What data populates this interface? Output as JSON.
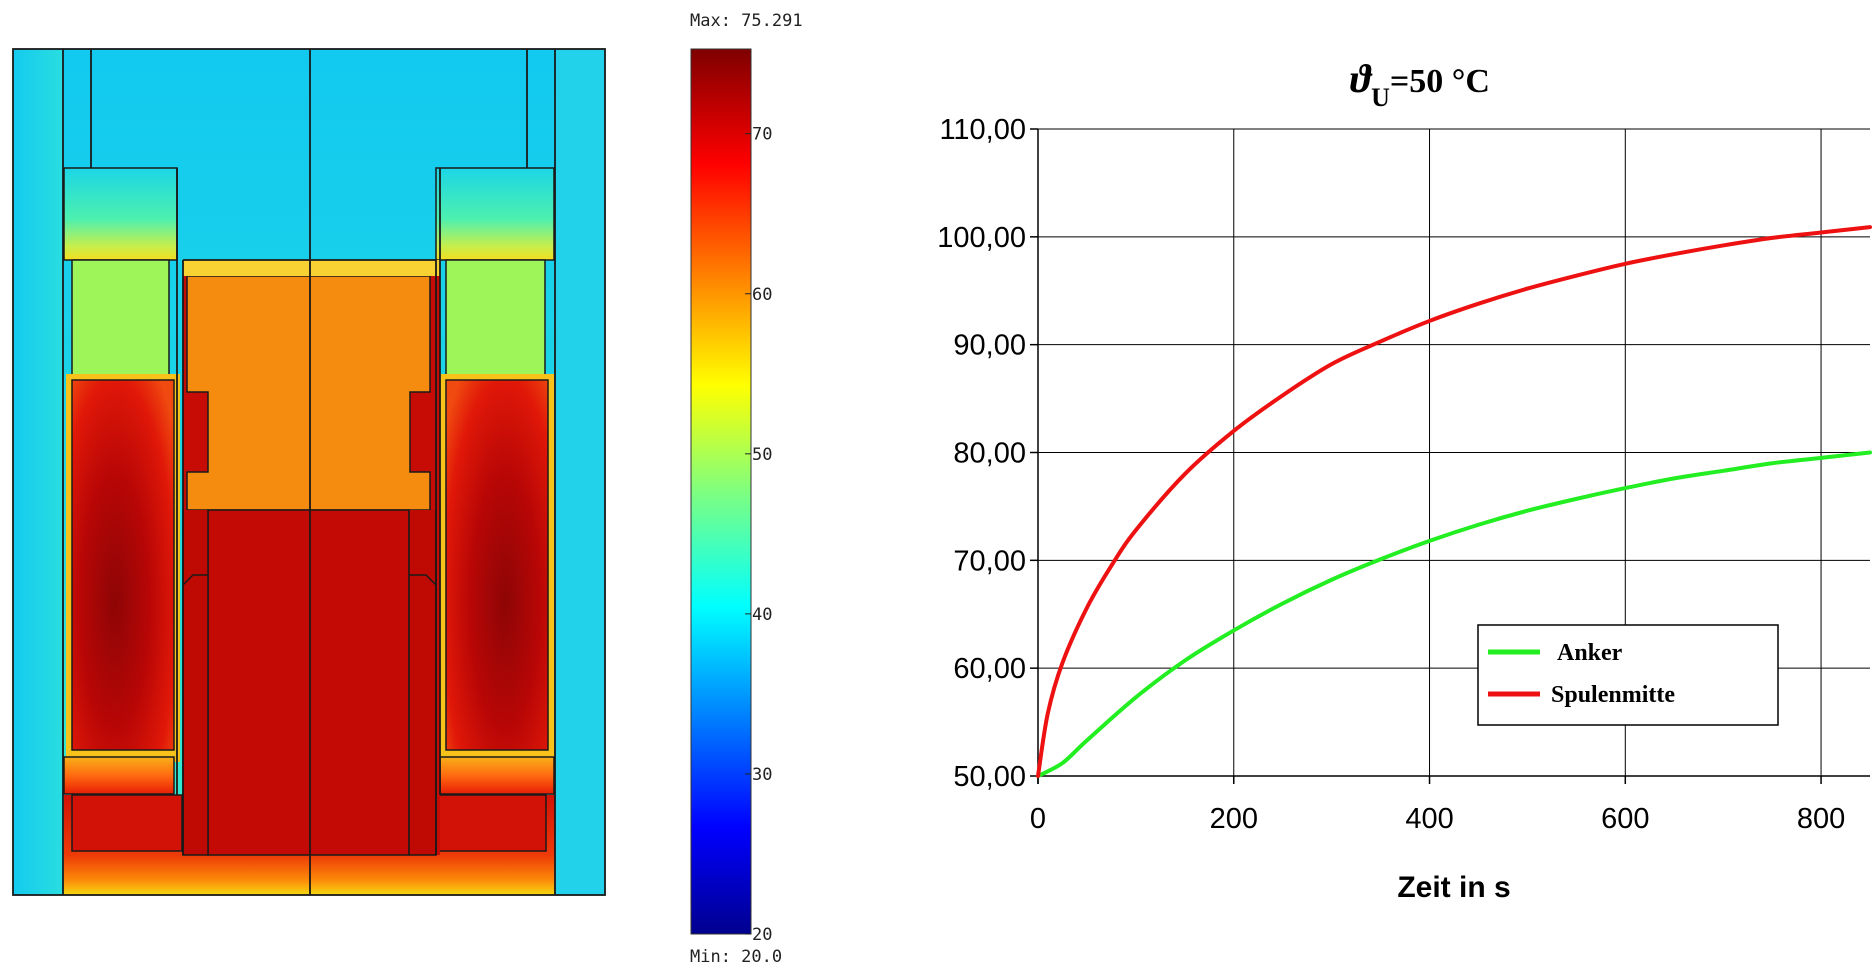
{
  "fem": {
    "scale_max_label": "Max: 75.291",
    "scale_min_label": "Min: 20.0",
    "colorbar_ticks": [
      {
        "value": 70,
        "label": "70"
      },
      {
        "value": 60,
        "label": "60"
      },
      {
        "value": 50,
        "label": "50"
      },
      {
        "value": 40,
        "label": "40"
      },
      {
        "value": 30,
        "label": "30"
      },
      {
        "value": 20,
        "label": "20"
      }
    ],
    "scale_range": [
      20.0,
      75.291
    ],
    "colormap": "jet"
  },
  "chart_data": {
    "type": "line",
    "title": "ϑU=50 °C",
    "title_symbol": "ϑ",
    "title_subscript": "U",
    "title_rest": "=50 °C",
    "xlabel": "Zeit in s",
    "ylabel": "",
    "xlim": [
      0,
      850
    ],
    "ylim": [
      50,
      110
    ],
    "xticks": [
      {
        "value": 0,
        "label": "0"
      },
      {
        "value": 200,
        "label": "200"
      },
      {
        "value": 400,
        "label": "400"
      },
      {
        "value": 600,
        "label": "600"
      },
      {
        "value": 800,
        "label": "800"
      }
    ],
    "yticks": [
      {
        "value": 50,
        "label": "50,00"
      },
      {
        "value": 60,
        "label": "60,00"
      },
      {
        "value": 70,
        "label": "70,00"
      },
      {
        "value": 80,
        "label": "80,00"
      },
      {
        "value": 90,
        "label": "90,00"
      },
      {
        "value": 100,
        "label": "100,00"
      },
      {
        "value": 110,
        "label": "110,00"
      }
    ],
    "grid": true,
    "legend_position": "lower-right",
    "series": [
      {
        "name": "Anker",
        "color": "#22ee22",
        "x": [
          0,
          25,
          50,
          100,
          150,
          200,
          250,
          300,
          350,
          400,
          450,
          500,
          550,
          600,
          650,
          700,
          750,
          800,
          850
        ],
        "y": [
          50,
          51.2,
          53.3,
          57.3,
          60.7,
          63.5,
          66.0,
          68.2,
          70.1,
          71.8,
          73.3,
          74.6,
          75.7,
          76.7,
          77.6,
          78.3,
          79.0,
          79.5,
          80.0
        ]
      },
      {
        "name": "Spulenmitte",
        "color": "#ee1111",
        "x": [
          0,
          10,
          25,
          50,
          75,
          100,
          150,
          200,
          250,
          300,
          350,
          400,
          450,
          500,
          550,
          600,
          650,
          700,
          750,
          800,
          850
        ],
        "y": [
          50,
          55.8,
          60.5,
          65.6,
          69.5,
          72.8,
          78.0,
          82.0,
          85.3,
          88.2,
          90.3,
          92.2,
          93.8,
          95.2,
          96.4,
          97.5,
          98.4,
          99.2,
          99.9,
          100.4,
          100.9
        ]
      }
    ]
  }
}
